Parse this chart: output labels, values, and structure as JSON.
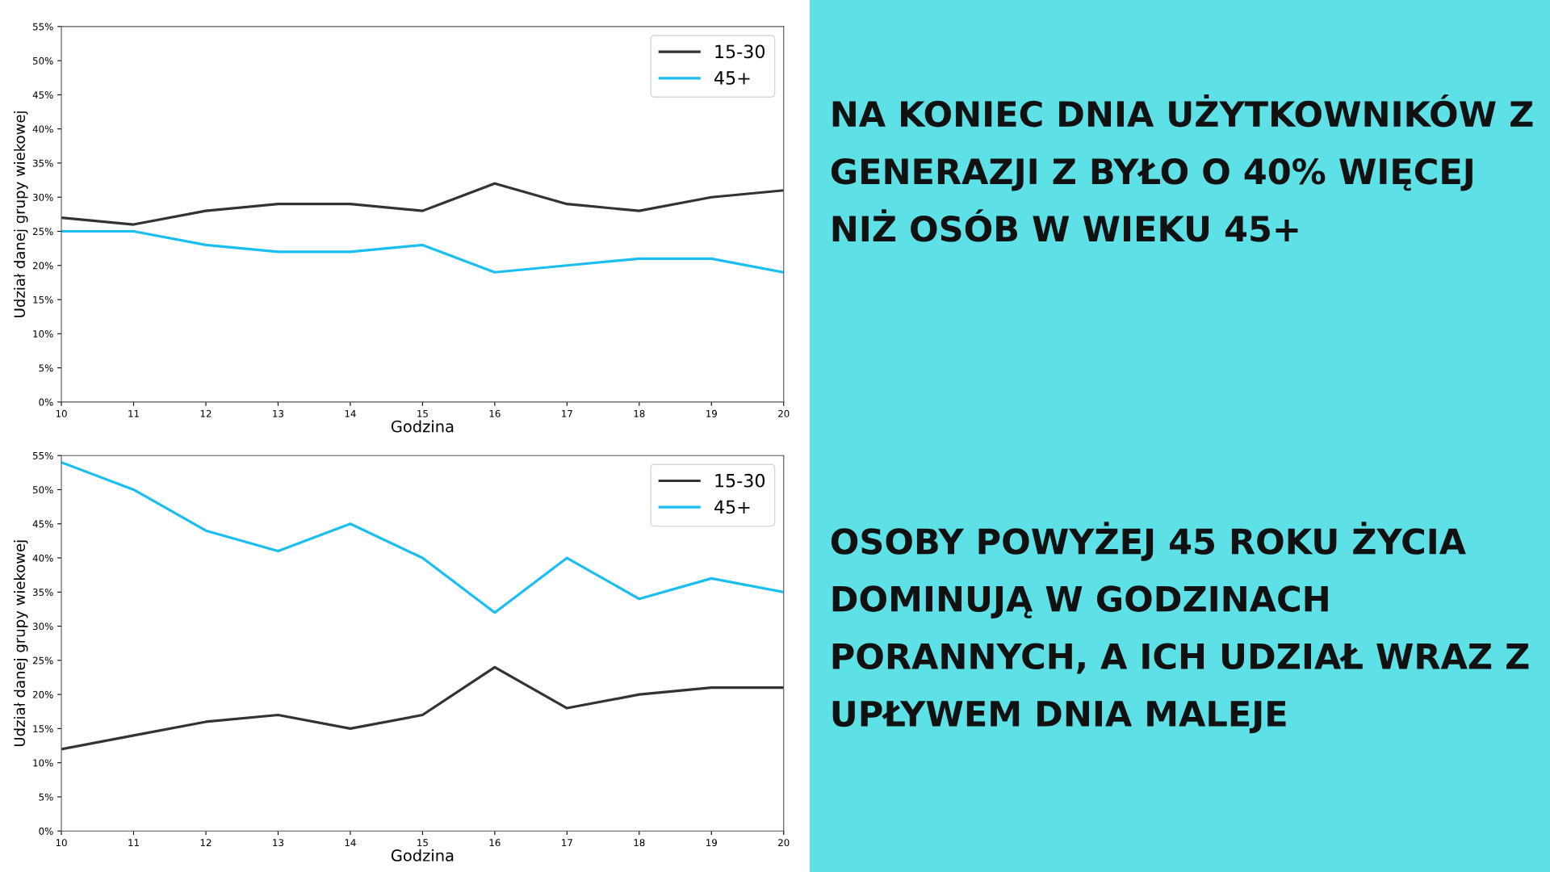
{
  "chart_data": [
    {
      "type": "line",
      "x": [
        10,
        11,
        12,
        13,
        14,
        15,
        16,
        17,
        18,
        19,
        20
      ],
      "series": [
        {
          "name": "15-30",
          "color": "#333333",
          "values": [
            27,
            26,
            28,
            29,
            29,
            28,
            32,
            29,
            28,
            30,
            31
          ]
        },
        {
          "name": "45+",
          "color": "#1abef0",
          "values": [
            25,
            25,
            23,
            22,
            22,
            23,
            19,
            20,
            21,
            21,
            19
          ]
        }
      ],
      "xlabel": "Godzina",
      "ylabel": "Udział danej grupy wiekowej",
      "xlim": [
        10,
        20
      ],
      "xticks": [
        10,
        11,
        12,
        13,
        14,
        15,
        16,
        17,
        18,
        19,
        20
      ],
      "ylim": [
        0,
        55
      ],
      "yticks": [
        {
          "value": 0,
          "label": "0%"
        },
        {
          "value": 5,
          "label": "5%"
        },
        {
          "value": 10,
          "label": "10%"
        },
        {
          "value": 15,
          "label": "15%"
        },
        {
          "value": 20,
          "label": "20%"
        },
        {
          "value": 25,
          "label": "25%"
        },
        {
          "value": 30,
          "label": "30%"
        },
        {
          "value": 35,
          "label": "35%"
        },
        {
          "value": 40,
          "label": "40%"
        },
        {
          "value": 45,
          "label": "45%"
        },
        {
          "value": 50,
          "label": "50%"
        },
        {
          "value": 55,
          "label": "55%"
        }
      ],
      "legend": "top right"
    },
    {
      "type": "line",
      "x": [
        10,
        11,
        12,
        13,
        14,
        15,
        16,
        17,
        18,
        19,
        20
      ],
      "series": [
        {
          "name": "15-30",
          "color": "#333333",
          "values": [
            12,
            14,
            16,
            17,
            15,
            17,
            24,
            18,
            20,
            21,
            21
          ]
        },
        {
          "name": "45+",
          "color": "#1abef0",
          "values": [
            54,
            50,
            44,
            41,
            45,
            40,
            32,
            40,
            34,
            37,
            35
          ]
        }
      ],
      "xlabel": "Godzina",
      "ylabel": "Udział danej grupy wiekowej",
      "xlim": [
        10,
        20
      ],
      "xticks": [
        10,
        11,
        12,
        13,
        14,
        15,
        16,
        17,
        18,
        19,
        20
      ],
      "ylim": [
        0,
        55
      ],
      "yticks": [
        {
          "value": 0,
          "label": "0%"
        },
        {
          "value": 5,
          "label": "5%"
        },
        {
          "value": 10,
          "label": "10%"
        },
        {
          "value": 15,
          "label": "15%"
        },
        {
          "value": 20,
          "label": "20%"
        },
        {
          "value": 25,
          "label": "25%"
        },
        {
          "value": 30,
          "label": "30%"
        },
        {
          "value": 35,
          "label": "35%"
        },
        {
          "value": 40,
          "label": "40%"
        },
        {
          "value": 45,
          "label": "45%"
        },
        {
          "value": 50,
          "label": "50%"
        },
        {
          "value": 55,
          "label": "55%"
        }
      ],
      "legend": "top right"
    },
    {
      "type": "other",
      "annotations": [
        "NA KONIEC DNIA UŻYTKOWNIKÓW Z GENERAZJI Z BYŁO O 40% WIĘCEJ NIŻ OSÓB W WIEKU 45+",
        "OSOBY POWYŻEJ 45 ROKU ŻYCIA DOMINUJĄ W GODZINACH PORANNYCH, A ICH UDZIAŁ WRAZ Z UPŁYWEM DNIA MALEJE"
      ]
    }
  ]
}
